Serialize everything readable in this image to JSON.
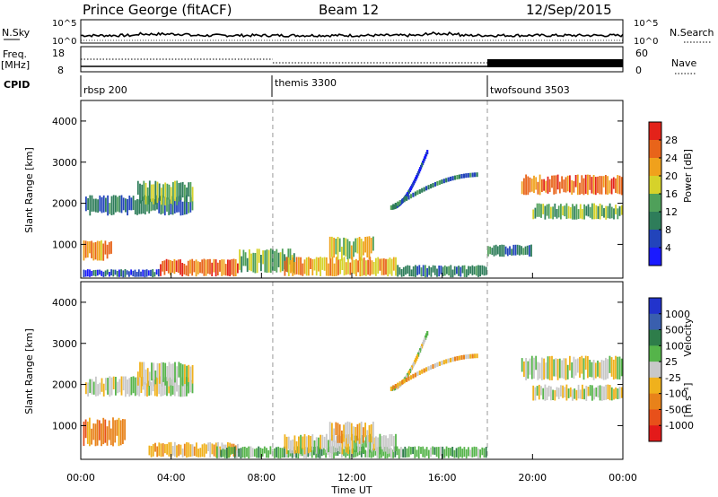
{
  "header": {
    "station": "Prince George (fitACF)",
    "beam": "Beam 12",
    "date": "12/Sep/2015"
  },
  "nsky_panel": {
    "left_label": "N.Sky",
    "right_label": "N.Search",
    "left_ticks": [
      "10^5",
      "10^0"
    ],
    "right_ticks": [
      "10^5",
      "10^0"
    ]
  },
  "freq_panel": {
    "left_label_1": "Freq.",
    "left_label_2": "[MHz]",
    "right_label": "Nave",
    "left_ticks": [
      "18",
      "8"
    ],
    "right_ticks": [
      "60",
      "0"
    ]
  },
  "cpid_panel": {
    "label": "CPID",
    "segments": [
      {
        "name": "rbsp 200",
        "start_hour": 0
      },
      {
        "name": "themis 3300",
        "start_hour": 8.5
      },
      {
        "name": "twofsound 3503",
        "start_hour": 18
      }
    ]
  },
  "power_panel": {
    "ylabel": "Slant Range [km]",
    "yticks": [
      "1000",
      "2000",
      "3000",
      "4000"
    ],
    "colorbar_label": "Power [dB]",
    "colorbar_ticks": [
      "4",
      "8",
      "12",
      "16",
      "20",
      "24",
      "28"
    ],
    "colors": [
      "#1a1aff",
      "#2244bb",
      "#2e7d5a",
      "#4fa05a",
      "#d6d22a",
      "#f0a11c",
      "#e8641a",
      "#e3221a"
    ]
  },
  "velocity_panel": {
    "ylabel": "Slant Range [km]",
    "yticks": [
      "1000",
      "2000",
      "3000",
      "4000"
    ],
    "colorbar_label": "Velocity",
    "colorbar_unit_html": "[m s⁻¹]",
    "colorbar_ticks": [
      "1000",
      "500",
      "100",
      "25",
      "-25",
      "-100",
      "-500",
      "-1000"
    ],
    "colors": [
      "#2233cc",
      "#3a5fae",
      "#2e7d4a",
      "#55b44a",
      "#c8c8c8",
      "#f0b11c",
      "#e8821a",
      "#e8501a",
      "#e31a1a"
    ]
  },
  "time_axis": {
    "ticks": [
      "00:00",
      "04:00",
      "08:00",
      "12:00",
      "16:00",
      "20:00",
      "00:00"
    ],
    "xlabel": "Time UT"
  },
  "chart_data": {
    "type": "heatmap",
    "x_range_hours": [
      0,
      24
    ],
    "y_range_km": [
      180,
      4500
    ],
    "dashed_lines_hours": [
      8.5,
      18
    ],
    "power_patches": [
      {
        "t0": 0.2,
        "t1": 5.0,
        "r0": 1700,
        "r1": 2200,
        "level": 2
      },
      {
        "t0": 2.5,
        "t1": 5.0,
        "r0": 1950,
        "r1": 2550,
        "level": 3
      },
      {
        "t0": 0.1,
        "t1": 1.4,
        "r0": 600,
        "r1": 1100,
        "level": 5
      },
      {
        "t0": 0.1,
        "t1": 3.5,
        "r0": 200,
        "r1": 400,
        "level": 1
      },
      {
        "t0": 3.5,
        "t1": 7.0,
        "r0": 220,
        "r1": 650,
        "level": 6
      },
      {
        "t0": 7.0,
        "t1": 9.5,
        "r0": 300,
        "r1": 900,
        "level": 3
      },
      {
        "t0": 9.0,
        "t1": 14.0,
        "r0": 220,
        "r1": 700,
        "level": 5
      },
      {
        "t0": 11.0,
        "t1": 13.0,
        "r0": 600,
        "r1": 1200,
        "level": 4
      },
      {
        "t0": 14.0,
        "t1": 18.0,
        "r0": 200,
        "r1": 500,
        "level": 2
      },
      {
        "t0": 19.5,
        "t1": 24.0,
        "r0": 2200,
        "r1": 2700,
        "level": 6
      },
      {
        "t0": 20.0,
        "t1": 24.0,
        "r0": 1600,
        "r1": 2000,
        "level": 3
      },
      {
        "t0": 18.0,
        "t1": 20.0,
        "r0": 700,
        "r1": 1000,
        "level": 2
      }
    ],
    "power_arcs": [
      {
        "t0": 15.3,
        "t1": 13.7,
        "r0": 3300,
        "r1": 1950,
        "level": 1
      },
      {
        "t0": 13.7,
        "t1": 17.6,
        "r0": 1950,
        "r1": 2750,
        "level": 2
      }
    ],
    "velocity_patches": [
      {
        "t0": 0.2,
        "t1": 5.0,
        "r0": 1700,
        "r1": 2200,
        "level": 4
      },
      {
        "t0": 2.5,
        "t1": 5.0,
        "r0": 1950,
        "r1": 2550,
        "level": 4
      },
      {
        "t0": 0.1,
        "t1": 2.0,
        "r0": 500,
        "r1": 1200,
        "level": 6
      },
      {
        "t0": 3.0,
        "t1": 7.0,
        "r0": 220,
        "r1": 600,
        "level": 5
      },
      {
        "t0": 6.0,
        "t1": 18.0,
        "r0": 200,
        "r1": 500,
        "level": 3
      },
      {
        "t0": 9.0,
        "t1": 14.0,
        "r0": 300,
        "r1": 800,
        "level": 4
      },
      {
        "t0": 11.0,
        "t1": 13.0,
        "r0": 550,
        "r1": 1100,
        "level": 5
      },
      {
        "t0": 19.5,
        "t1": 24.0,
        "r0": 2100,
        "r1": 2700,
        "level": 4
      },
      {
        "t0": 20.0,
        "t1": 24.0,
        "r0": 1600,
        "r1": 2000,
        "level": 4
      }
    ],
    "velocity_arcs": [
      {
        "t0": 15.3,
        "t1": 13.7,
        "r0": 3300,
        "r1": 1950,
        "level": 4
      },
      {
        "t0": 13.7,
        "t1": 17.6,
        "r0": 1950,
        "r1": 2750,
        "level": 5
      }
    ]
  }
}
